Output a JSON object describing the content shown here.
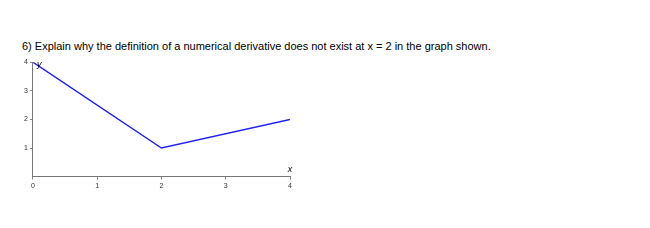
{
  "chart_data": {
    "type": "line",
    "title": "6) Explain why the definition of a numerical derivative does not exist at x = 2 in the graph shown.",
    "x_label": "x",
    "y_label": "y",
    "x": [
      0,
      2,
      4
    ],
    "values": [
      4,
      1,
      2
    ],
    "color": "#2222ee",
    "xlim": [
      0,
      4
    ],
    "ylim": [
      0,
      4
    ],
    "xticks": [
      0,
      1,
      2,
      3,
      4
    ],
    "yticks": [
      1,
      2,
      3,
      4
    ],
    "grid": false
  }
}
